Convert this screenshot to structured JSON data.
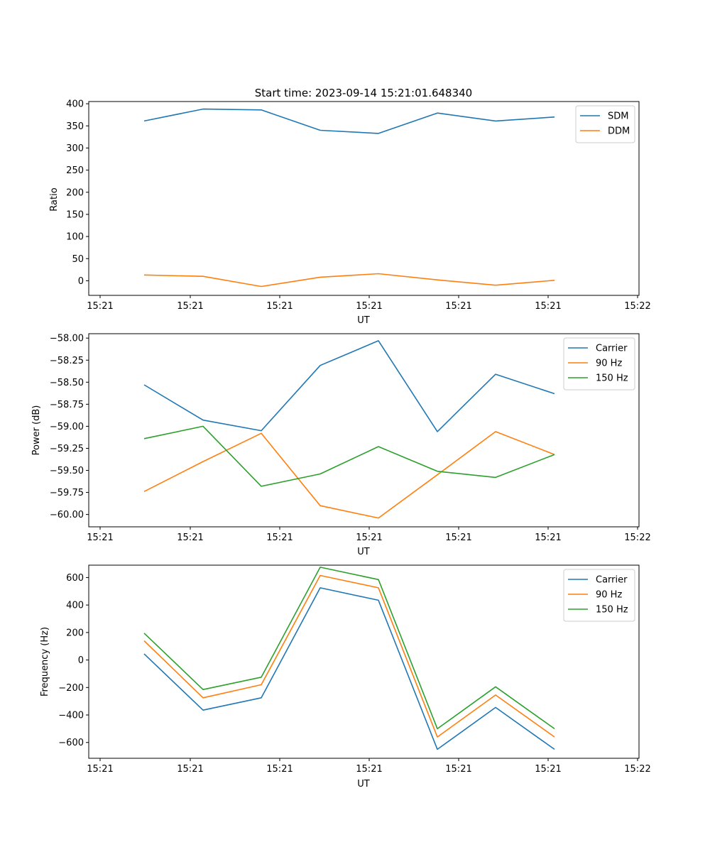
{
  "figure": {
    "title": "Start time: 2023-09-14 15:21:01.648340"
  },
  "chart_data": [
    {
      "type": "line",
      "xlabel": "UT",
      "ylabel": "Ratio",
      "xticks": [
        "15:21",
        "15:21",
        "15:21",
        "15:21",
        "15:21",
        "15:21",
        "15:22"
      ],
      "yticks": [
        0,
        50,
        100,
        150,
        200,
        250,
        300,
        350,
        400
      ],
      "ylim": [
        -33,
        405
      ],
      "legend_position": "top-right",
      "series": [
        {
          "name": "SDM",
          "color": "#1f77b4",
          "values": [
            361,
            388,
            386,
            340,
            333,
            379,
            361,
            370
          ]
        },
        {
          "name": "DDM",
          "color": "#ff7f0e",
          "values": [
            13,
            10,
            -13,
            8,
            16,
            2,
            -10,
            1
          ]
        }
      ]
    },
    {
      "type": "line",
      "xlabel": "UT",
      "ylabel": "Power (dB)",
      "xticks": [
        "15:21",
        "15:21",
        "15:21",
        "15:21",
        "15:21",
        "15:21",
        "15:22"
      ],
      "yticks": [
        "−60.00",
        "−59.75",
        "−59.50",
        "−59.25",
        "−59.00",
        "−58.75",
        "−58.50",
        "−58.25",
        "−58.00"
      ],
      "ytick_values": [
        -60.0,
        -59.75,
        -59.5,
        -59.25,
        -59.0,
        -58.75,
        -58.5,
        -58.25,
        -58.0
      ],
      "ylim": [
        -60.14,
        -57.95
      ],
      "legend_position": "top-right",
      "series": [
        {
          "name": "Carrier",
          "color": "#1f77b4",
          "values": [
            -58.53,
            -58.93,
            -59.05,
            -58.31,
            -58.03,
            -59.06,
            -58.41,
            -58.63
          ]
        },
        {
          "name": "90 Hz",
          "color": "#ff7f0e",
          "values": [
            -59.74,
            -59.4,
            -59.08,
            -59.9,
            -60.04,
            -59.55,
            -59.06,
            -59.32
          ]
        },
        {
          "name": "150 Hz",
          "color": "#2ca02c",
          "values": [
            -59.14,
            -59.0,
            -59.68,
            -59.54,
            -59.23,
            -59.51,
            -59.58,
            -59.32
          ]
        }
      ]
    },
    {
      "type": "line",
      "xlabel": "UT",
      "ylabel": "Frequency (Hz)",
      "xticks": [
        "15:21",
        "15:21",
        "15:21",
        "15:21",
        "15:21",
        "15:21",
        "15:22"
      ],
      "yticks": [
        "−600",
        "−400",
        "−200",
        "0",
        "200",
        "400",
        "600"
      ],
      "ytick_values": [
        -600,
        -400,
        -200,
        0,
        200,
        400,
        600
      ],
      "ylim": [
        -715,
        690
      ],
      "legend_position": "top-right",
      "series": [
        {
          "name": "Carrier",
          "color": "#1f77b4",
          "values": [
            45,
            -365,
            -275,
            525,
            435,
            -650,
            -345,
            -650
          ]
        },
        {
          "name": "90 Hz",
          "color": "#ff7f0e",
          "values": [
            140,
            -275,
            -180,
            615,
            525,
            -560,
            -255,
            -560
          ]
        },
        {
          "name": "150 Hz",
          "color": "#2ca02c",
          "values": [
            195,
            -215,
            -125,
            675,
            585,
            -500,
            -195,
            -500
          ]
        }
      ]
    }
  ]
}
